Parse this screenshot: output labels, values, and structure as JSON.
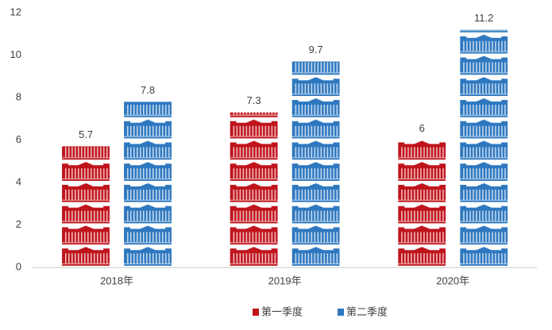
{
  "chart_data": {
    "type": "bar",
    "categories": [
      "2018年",
      "2019年",
      "2020年"
    ],
    "series": [
      {
        "name": "第一季度",
        "color": "#c0141c",
        "values": [
          5.7,
          7.3,
          6
        ]
      },
      {
        "name": "第二季度",
        "color": "#2e78c0",
        "values": [
          7.8,
          9.7,
          11.2
        ]
      }
    ],
    "ylim": [
      0,
      12
    ],
    "yticks": [
      0,
      2,
      4,
      6,
      8,
      10,
      12
    ],
    "grid": false,
    "legend": "bottom"
  }
}
